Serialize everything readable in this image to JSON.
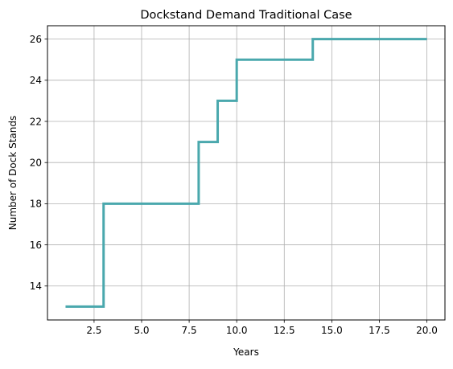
{
  "chart_data": {
    "type": "line",
    "drawstyle": "steps-post",
    "title": "Dockstand Demand Traditional Case",
    "xlabel": "Years",
    "ylabel": "Number of Dock Stands",
    "xlim": [
      0.05,
      20.95
    ],
    "ylim": [
      12.35,
      26.65
    ],
    "xticks": [
      2.5,
      5.0,
      7.5,
      10.0,
      12.5,
      15.0,
      17.5,
      20.0
    ],
    "xtick_labels": [
      "2.5",
      "5.0",
      "7.5",
      "10.0",
      "12.5",
      "15.0",
      "17.5",
      "20.0"
    ],
    "yticks": [
      14,
      16,
      18,
      20,
      22,
      24,
      26
    ],
    "ytick_labels": [
      "14",
      "16",
      "18",
      "20",
      "22",
      "24",
      "26"
    ],
    "grid": true,
    "series": [
      {
        "color": "#4aa8ad",
        "x": [
          1,
          2,
          3,
          4,
          5,
          6,
          7,
          8,
          9,
          10,
          11,
          12,
          13,
          14,
          15,
          16,
          17,
          18,
          19,
          20
        ],
        "values": [
          13,
          13,
          18,
          18,
          18,
          18,
          18,
          21,
          23,
          25,
          25,
          25,
          25,
          26,
          26,
          26,
          26,
          26,
          26,
          26
        ]
      }
    ]
  }
}
